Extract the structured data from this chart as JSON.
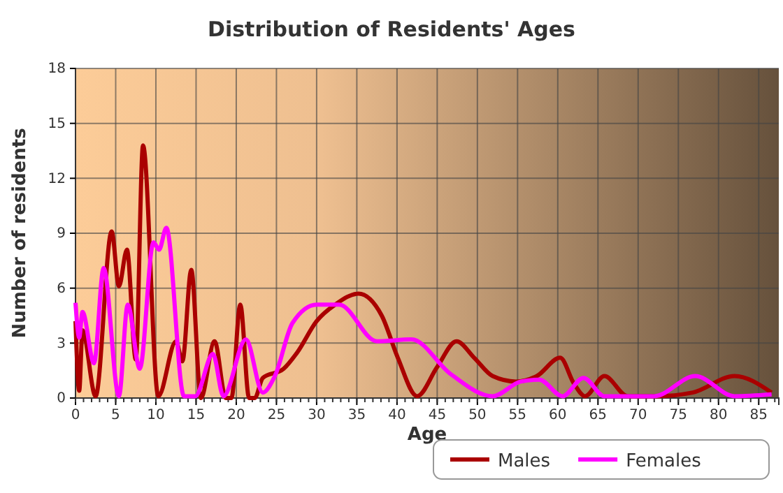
{
  "chart_data": {
    "type": "line",
    "title": "Distribution of Residents' Ages",
    "xlabel": "Age",
    "ylabel": "Number of residents",
    "xlim": [
      0,
      87.5
    ],
    "xticks": [
      0,
      5,
      10,
      15,
      20,
      25,
      30,
      35,
      40,
      45,
      50,
      55,
      60,
      65,
      70,
      75,
      80,
      85
    ],
    "ylim": [
      0,
      18
    ],
    "yticks": [
      0,
      3,
      6,
      9,
      12,
      15,
      18
    ],
    "grid": true,
    "legend": "bottom",
    "marker": "none",
    "line_style": "solid",
    "series": [
      {
        "name": "Males",
        "color": "#aa0000",
        "x": [
          0,
          0.46,
          0.87,
          2.5,
          4.5,
          5.4,
          6.4,
          7.5,
          8.4,
          10.3,
          12.5,
          13.3,
          14.4,
          15.6,
          17.3,
          18.7,
          19.4,
          20.5,
          21.6,
          22.3,
          23.3,
          25.9,
          27.6,
          30,
          32.3,
          35.2,
          38.1,
          40.1,
          42.5,
          45,
          47.4,
          49.6,
          51.9,
          54.8,
          57.4,
          60.3,
          62,
          63.4,
          65.8,
          68.7,
          72.2,
          76.8,
          82,
          86.6
        ],
        "values": [
          4.2,
          0.4,
          3.7,
          0.1,
          9.1,
          6.1,
          8.1,
          2.1,
          13.8,
          0.1,
          3.1,
          2,
          7,
          0,
          3.1,
          0,
          0,
          5.1,
          0,
          0,
          1.1,
          1.6,
          2.5,
          4.2,
          5.1,
          5.7,
          4.5,
          2.2,
          0.1,
          1.7,
          3.1,
          2.2,
          1.2,
          0.9,
          1.2,
          2.2,
          0.8,
          0.1,
          1.2,
          0.1,
          0.1,
          0.3,
          1.2,
          0.3
        ]
      },
      {
        "name": "Females",
        "color": "#ff00ff",
        "x": [
          0,
          0.46,
          0.87,
          2.3,
          3.5,
          5.4,
          6.5,
          8,
          9.7,
          10.4,
          11.3,
          13.5,
          14.9,
          17.1,
          18.4,
          21.2,
          23.3,
          24.8,
          27,
          30,
          32.8,
          37.5,
          41.8,
          46.7,
          51.9,
          55.4,
          57.7,
          60.6,
          63.2,
          65.8,
          72,
          77.1,
          82,
          86.6
        ],
        "values": [
          5.2,
          3.3,
          4.7,
          1.9,
          7.1,
          0.1,
          5.1,
          1.6,
          8.5,
          8.1,
          9.3,
          0.1,
          0.1,
          2.4,
          0.1,
          3.2,
          0.3,
          1.2,
          4.1,
          5.1,
          5.1,
          3.1,
          3.2,
          1.3,
          0.1,
          0.9,
          1,
          0.1,
          1.1,
          0.1,
          0.1,
          1.2,
          0.1,
          0.2
        ]
      }
    ]
  }
}
